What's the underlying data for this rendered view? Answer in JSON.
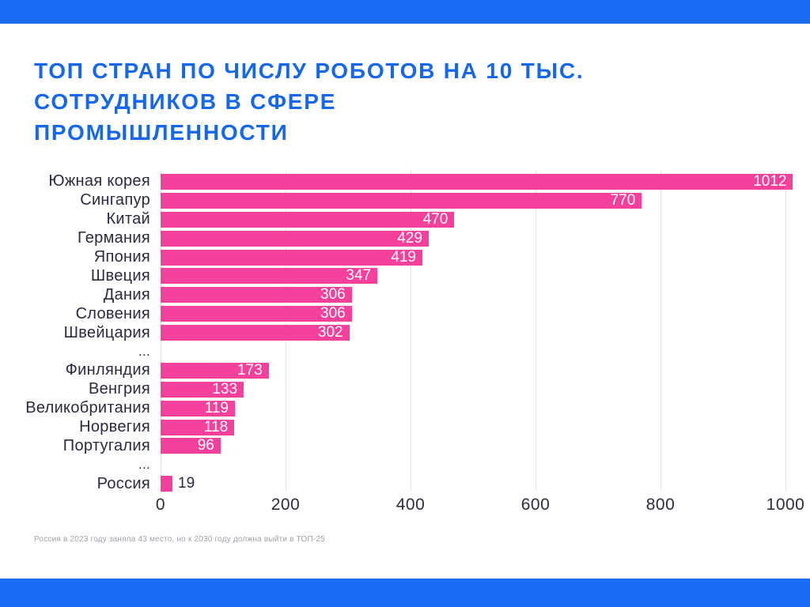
{
  "title": {
    "lines": [
      "ТОП СТРАН ПО ЧИСЛУ РОБОТОВ НА 10 ТЫС.",
      "СОТРУДНИКОВ В СФЕРЕ",
      "ПРОМЫШЛЕННОСТИ"
    ]
  },
  "footnote": "Россия в 2023 году заняла 43 место, но к 2030 году должна выйти в ТОП-25",
  "colors": {
    "accent_blue": "#1A6CF4",
    "title_blue": "#1767EA",
    "bar_pink": "#F5419B",
    "label_dark": "#2B2A3E",
    "grid_gray": "#E3E3E8",
    "footnote_gray": "#A0A0AB"
  },
  "chart_data": {
    "type": "bar",
    "orientation": "horizontal",
    "title": "ТОП СТРАН ПО ЧИСЛУ РОБОТОВ НА 10 ТЫС. СОТРУДНИКОВ В СФЕРЕ ПРОМЫШЛЕННОСТИ",
    "categories": [
      "Южная корея",
      "Сингапур",
      "Китай",
      "Германия",
      "Япония",
      "Швеция",
      "Дания",
      "Словения",
      "Швейцария",
      "...",
      "Финляндия",
      "Венгрия",
      "Великобритания",
      "Норвегия",
      "Португалия",
      "...",
      "Россия"
    ],
    "values": [
      1012,
      770,
      470,
      429,
      419,
      347,
      306,
      306,
      302,
      null,
      173,
      133,
      119,
      118,
      96,
      null,
      19
    ],
    "xlim": [
      0,
      1000
    ],
    "x_ticks": [
      0,
      200,
      400,
      600,
      800,
      1000
    ],
    "bar_color": "#F5419B",
    "grid": true,
    "legend": false
  }
}
